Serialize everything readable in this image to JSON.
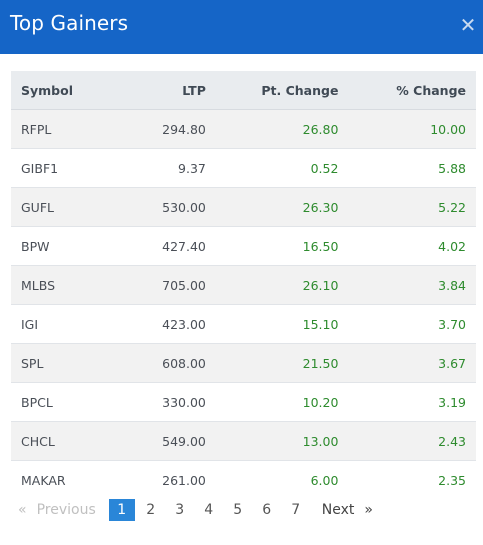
{
  "header": {
    "title": "Top Gainers",
    "close_glyph": "✕"
  },
  "table": {
    "columns": [
      "Symbol",
      "LTP",
      "Pt. Change",
      "% Change"
    ],
    "rows": [
      {
        "symbol": "RFPL",
        "ltp": "294.80",
        "pt_change": "26.80",
        "pct_change": "10.00"
      },
      {
        "symbol": "GIBF1",
        "ltp": "9.37",
        "pt_change": "0.52",
        "pct_change": "5.88"
      },
      {
        "symbol": "GUFL",
        "ltp": "530.00",
        "pt_change": "26.30",
        "pct_change": "5.22"
      },
      {
        "symbol": "BPW",
        "ltp": "427.40",
        "pt_change": "16.50",
        "pct_change": "4.02"
      },
      {
        "symbol": "MLBS",
        "ltp": "705.00",
        "pt_change": "26.10",
        "pct_change": "3.84"
      },
      {
        "symbol": "IGI",
        "ltp": "423.00",
        "pt_change": "15.10",
        "pct_change": "3.70"
      },
      {
        "symbol": "SPL",
        "ltp": "608.00",
        "pt_change": "21.50",
        "pct_change": "3.67"
      },
      {
        "symbol": "BPCL",
        "ltp": "330.00",
        "pt_change": "10.20",
        "pct_change": "3.19"
      },
      {
        "symbol": "CHCL",
        "ltp": "549.00",
        "pt_change": "13.00",
        "pct_change": "2.43"
      },
      {
        "symbol": "MAKAR",
        "ltp": "261.00",
        "pt_change": "6.00",
        "pct_change": "2.35"
      }
    ]
  },
  "pagination": {
    "prev_arrow": "«",
    "prev_label": "Previous",
    "pages": [
      "1",
      "2",
      "3",
      "4",
      "5",
      "6",
      "7"
    ],
    "active_page": "1",
    "next_label": "Next",
    "next_arrow": "»"
  },
  "colors": {
    "header_bg": "#1565c7",
    "gain_green": "#2e8b2e",
    "active_page_bg": "#2a86d8"
  }
}
